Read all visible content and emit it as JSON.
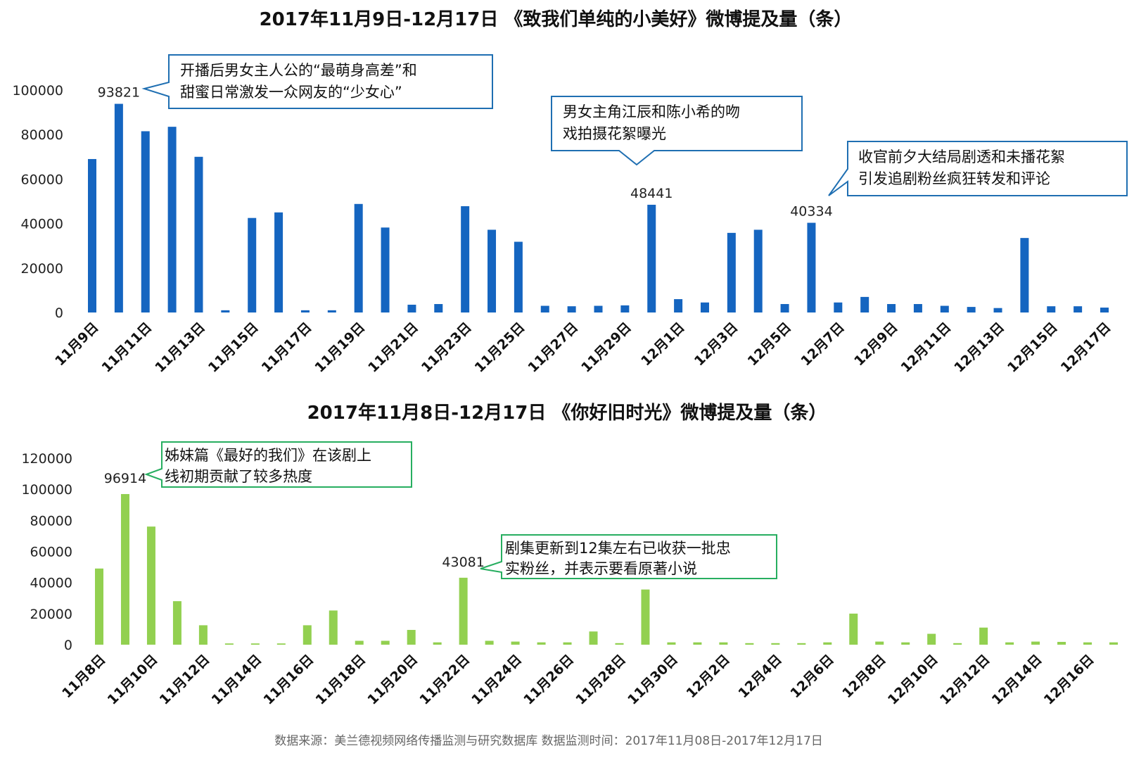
{
  "chart_data": [
    {
      "type": "bar",
      "title": "2017年11月9日-12月17日 《致我们单纯的小美好》微博提及量（条）",
      "color": "#1565c0",
      "ylim": [
        0,
        100000
      ],
      "yticks": [
        "0",
        "20000",
        "40000",
        "60000",
        "80000",
        "100000"
      ],
      "categories": [
        "11月9日",
        "11月10日",
        "11月11日",
        "11月12日",
        "11月13日",
        "11月14日",
        "11月15日",
        "11月16日",
        "11月17日",
        "11月18日",
        "11月19日",
        "11月20日",
        "11月21日",
        "11月22日",
        "11月23日",
        "11月24日",
        "11月25日",
        "11月26日",
        "11月27日",
        "11月28日",
        "11月29日",
        "11月30日",
        "12月1日",
        "12月2日",
        "12月3日",
        "12月4日",
        "12月5日",
        "12月6日",
        "12月7日",
        "12月8日",
        "12月9日",
        "12月10日",
        "12月11日",
        "12月12日",
        "12月13日",
        "12月14日",
        "12月15日",
        "12月16日",
        "12月17日"
      ],
      "tick_labels": [
        "11月9日",
        "11月11日",
        "11月13日",
        "11月15日",
        "11月17日",
        "11月19日",
        "11月21日",
        "11月23日",
        "11月25日",
        "11月27日",
        "11月29日",
        "12月1日",
        "12月3日",
        "12月5日",
        "12月7日",
        "12月9日",
        "12月11日",
        "12月13日",
        "12月15日",
        "12月17日"
      ],
      "values": [
        69000,
        93821,
        81500,
        83500,
        70000,
        1000,
        42500,
        45000,
        1000,
        1000,
        48800,
        38200,
        3500,
        3800,
        47800,
        37200,
        31800,
        3000,
        2800,
        3000,
        3200,
        48441,
        6000,
        4500,
        35800,
        37200,
        3800,
        40334,
        4500,
        7000,
        3800,
        3800,
        3000,
        2500,
        2000,
        33500,
        2800,
        2800,
        2200
      ],
      "data_labels": [
        {
          "index": 1,
          "text": "93821"
        },
        {
          "index": 21,
          "text": "48441"
        },
        {
          "index": 27,
          "text": "40334"
        }
      ],
      "annotations": [
        {
          "lines": [
            "开播后男女主人公的“最萌身高差”和",
            "甜蜜日常激发一众网友的“少女心”"
          ],
          "target_index": 1
        },
        {
          "lines": [
            "男女主角江辰和陈小希的吻",
            "戏拍摄花絮曝光"
          ],
          "target_index": 21
        },
        {
          "lines": [
            "收官前夕大结局剧透和未播花絮",
            "引发追剧粉丝疯狂转发和评论"
          ],
          "target_index": 27
        }
      ]
    },
    {
      "type": "bar",
      "title": "2017年11月8日-12月17日 《你好旧时光》微博提及量（条）",
      "color": "#92d050",
      "ylim": [
        0,
        120000
      ],
      "yticks": [
        "0",
        "20000",
        "40000",
        "60000",
        "80000",
        "100000",
        "120000"
      ],
      "categories": [
        "11月8日",
        "11月9日",
        "11月10日",
        "11月11日",
        "11月12日",
        "11月13日",
        "11月14日",
        "11月15日",
        "11月16日",
        "11月17日",
        "11月18日",
        "11月19日",
        "11月20日",
        "11月21日",
        "11月22日",
        "11月23日",
        "11月24日",
        "11月25日",
        "11月26日",
        "11月27日",
        "11月28日",
        "11月29日",
        "11月30日",
        "12月1日",
        "12月2日",
        "12月3日",
        "12月4日",
        "12月5日",
        "12月6日",
        "12月7日",
        "12月8日",
        "12月9日",
        "12月10日",
        "12月11日",
        "12月12日",
        "12月13日",
        "12月14日",
        "12月15日",
        "12月16日",
        "12月17日"
      ],
      "tick_labels": [
        "11月8日",
        "11月10日",
        "11月12日",
        "11月14日",
        "11月16日",
        "11月18日",
        "11月20日",
        "11月22日",
        "11月24日",
        "11月26日",
        "11月28日",
        "11月30日",
        "12月2日",
        "12月4日",
        "12月6日",
        "12月8日",
        "12月10日",
        "12月12日",
        "12月14日",
        "12月16日"
      ],
      "values": [
        49000,
        96914,
        76000,
        28000,
        12500,
        800,
        800,
        800,
        12500,
        22000,
        2500,
        2500,
        9500,
        1500,
        43081,
        2500,
        2000,
        1500,
        1500,
        8500,
        1000,
        35500,
        1500,
        1500,
        1500,
        1000,
        1000,
        1000,
        1500,
        20000,
        2000,
        1500,
        7000,
        1000,
        11000,
        1500,
        2000,
        1800,
        1500,
        1500
      ],
      "data_labels": [
        {
          "index": 1,
          "text": "96914"
        },
        {
          "index": 14,
          "text": "43081"
        }
      ],
      "annotations": [
        {
          "lines": [
            "姊妹篇《最好的我们》在该剧上",
            "线初期贡献了较多热度"
          ],
          "target_index": 1
        },
        {
          "lines": [
            "剧集更新到12集左右已收获一批忠",
            "实粉丝，并表示要看原著小说"
          ],
          "target_index": 14
        }
      ]
    }
  ],
  "footer": {
    "source": "数据来源：美兰德视频网络传播监测与研究数据库  数据监测时间：2017年11月08日-2017年12月17日"
  }
}
